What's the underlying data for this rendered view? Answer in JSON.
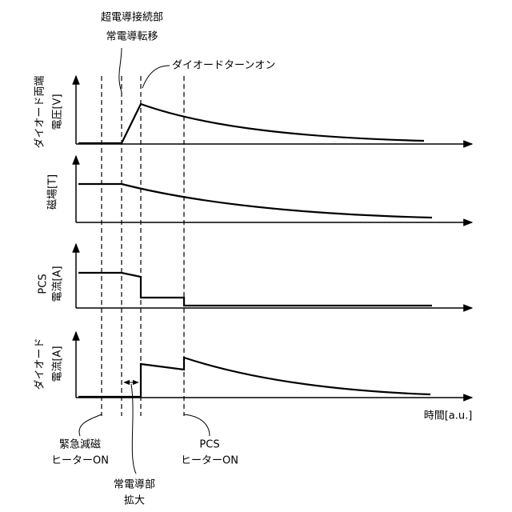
{
  "annotations": {
    "top": [
      "超電導接続部",
      "常電導転移"
    ],
    "turn_on": "ダイオードターンオン",
    "bottom_left": [
      "緊急減磁",
      "ヒーターON"
    ],
    "bottom_mid": [
      "常電導部",
      "拡大"
    ],
    "bottom_right": [
      "PCS",
      "ヒーターON"
    ]
  },
  "panels": [
    {
      "label": [
        "ダイオード両端",
        "電圧[V]"
      ]
    },
    {
      "label": [
        "磁場[T]"
      ]
    },
    {
      "label": [
        "PCS",
        "電流[A]"
      ]
    },
    {
      "label": [
        "ダイオード",
        "電流[A]"
      ]
    }
  ],
  "x_label": "時間[a.u.]"
}
